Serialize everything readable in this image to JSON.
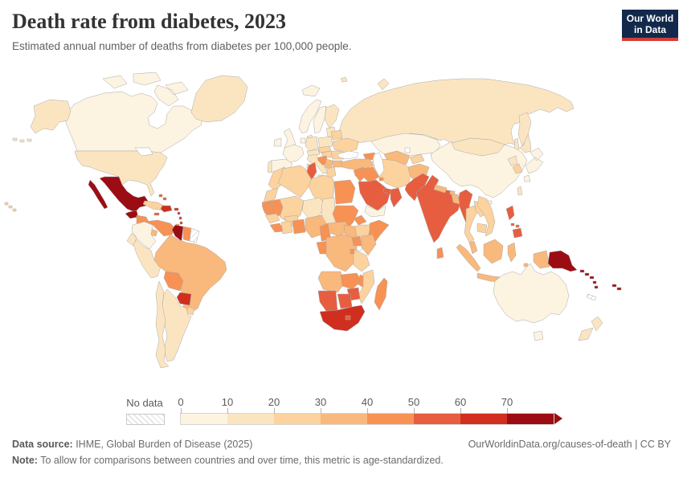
{
  "header": {
    "title": "Death rate from diabetes, 2023",
    "subtitle": "Estimated annual number of deaths from diabetes per 100,000 people."
  },
  "logo": {
    "line1": "Our World",
    "line2": "in Data",
    "bg_color": "#12294b",
    "accent_color": "#d13d39"
  },
  "legend": {
    "no_data_label": "No data",
    "tick_labels": [
      "0",
      "10",
      "20",
      "30",
      "40",
      "50",
      "60",
      "70"
    ],
    "bin_colors": [
      "#fdf3e1",
      "#fbe5c1",
      "#fcd29e",
      "#f9b87c",
      "#f79254",
      "#e75d40",
      "#d02f1f",
      "#9c0d13"
    ]
  },
  "footer": {
    "source_label": "Data source:",
    "source_text": " IHME, Global Burden of Disease (2025)",
    "rights_text": "OurWorldinData.org/causes-of-death | CC BY",
    "note_label": "Note:",
    "note_text": " To allow for comparisons between countries and over time, this metric is age-standardized."
  },
  "map": {
    "ocean_color": "#ffffff",
    "border_color": "#a9a9a9",
    "countries": [
      {
        "id": "russia",
        "bin": 1
      },
      {
        "id": "sea-okhotsk",
        "sea": true
      },
      {
        "id": "russia-far-east",
        "bin": 1
      },
      {
        "id": "kazakhstan",
        "bin": 0
      },
      {
        "id": "turkmenistan-uzbekistan",
        "bin": 3
      },
      {
        "id": "kyrgyzstan-tajikistan",
        "bin": 2
      },
      {
        "id": "caucasus",
        "bin": 4
      },
      {
        "id": "iran",
        "bin": 2
      },
      {
        "id": "sea-caspian",
        "sea": true
      },
      {
        "id": "sea-aral",
        "sea": true
      },
      {
        "id": "china",
        "bin": 0
      },
      {
        "id": "mongolia",
        "bin": 1
      },
      {
        "id": "north-korea",
        "bin": 1
      },
      {
        "id": "south-korea",
        "bin": 2
      },
      {
        "id": "japan",
        "bin": 0
      },
      {
        "id": "taiwan",
        "bin": 1
      },
      {
        "id": "norway",
        "bin": 0
      },
      {
        "id": "sweden",
        "bin": 0
      },
      {
        "id": "finland",
        "bin": 1
      },
      {
        "id": "denmark",
        "bin": 1
      },
      {
        "id": "baltic-states",
        "bin": 1
      },
      {
        "id": "belarus",
        "bin": 2
      },
      {
        "id": "poland",
        "bin": 1
      },
      {
        "id": "germany",
        "bin": 1
      },
      {
        "id": "benelux",
        "bin": 0
      },
      {
        "id": "uk",
        "bin": 0
      },
      {
        "id": "ireland",
        "bin": 0
      },
      {
        "id": "iceland",
        "bin": 0
      },
      {
        "id": "france",
        "bin": 0
      },
      {
        "id": "spain",
        "bin": 0
      },
      {
        "id": "portugal",
        "bin": 1
      },
      {
        "id": "switzerland-austria",
        "bin": 1
      },
      {
        "id": "czech-slovakia",
        "bin": 2
      },
      {
        "id": "hungary",
        "bin": 2
      },
      {
        "id": "ukraine",
        "bin": 2
      },
      {
        "id": "romania",
        "bin": 2
      },
      {
        "id": "bulgaria",
        "bin": 3
      },
      {
        "id": "croatia-bosnia",
        "bin": 4
      },
      {
        "id": "serbia-albania",
        "bin": 3
      },
      {
        "id": "greece",
        "bin": 2
      },
      {
        "id": "italy",
        "bin": 1
      },
      {
        "id": "turkey",
        "bin": 3
      },
      {
        "id": "sea-black",
        "sea": true
      },
      {
        "id": "cyprus",
        "bin": 3
      },
      {
        "id": "syria-levant",
        "bin": 4
      },
      {
        "id": "iraq",
        "bin": 4
      },
      {
        "id": "saudi-arabia",
        "bin": 5
      },
      {
        "id": "kuwait",
        "bin": 4
      },
      {
        "id": "uae-qatar",
        "bin": 5
      },
      {
        "id": "oman",
        "bin": 5
      },
      {
        "id": "yemen",
        "bin": 0
      },
      {
        "id": "afghanistan",
        "bin": 3
      },
      {
        "id": "pakistan",
        "bin": 5
      },
      {
        "id": "india",
        "bin": 5
      },
      {
        "id": "nepal",
        "bin": 3
      },
      {
        "id": "bhutan",
        "bin": 3
      },
      {
        "id": "myanmar",
        "bin": 5
      },
      {
        "id": "bangladesh",
        "bin": 3
      },
      {
        "id": "sri-lanka",
        "bin": 4
      },
      {
        "id": "thailand",
        "bin": 2
      },
      {
        "id": "laos",
        "bin": 2
      },
      {
        "id": "vietnam",
        "bin": 2
      },
      {
        "id": "cambodia",
        "bin": 2
      },
      {
        "id": "malaysia",
        "bin": 3
      },
      {
        "id": "indonesia",
        "bin": 3
      },
      {
        "id": "philippines",
        "bin": 5
      },
      {
        "id": "papua-new-guinea",
        "bin": 7
      },
      {
        "id": "solomon-islands",
        "bin": 7
      },
      {
        "id": "vanuatu",
        "bin": 7
      },
      {
        "id": "fiji",
        "bin": 7
      },
      {
        "id": "new-caledonia",
        "bin": "nd"
      },
      {
        "id": "morocco",
        "bin": 2
      },
      {
        "id": "western-sahara",
        "bin": 2
      },
      {
        "id": "algeria",
        "bin": 2
      },
      {
        "id": "tunisia",
        "bin": 5
      },
      {
        "id": "libya",
        "bin": 2
      },
      {
        "id": "egypt",
        "bin": 4
      },
      {
        "id": "mauritania",
        "bin": 4
      },
      {
        "id": "mali",
        "bin": 2
      },
      {
        "id": "burkina-faso",
        "bin": 2
      },
      {
        "id": "niger",
        "bin": 1
      },
      {
        "id": "chad",
        "bin": 1
      },
      {
        "id": "sudan",
        "bin": 4
      },
      {
        "id": "eritrea",
        "bin": 4
      },
      {
        "id": "ethiopia",
        "bin": 2
      },
      {
        "id": "somalia",
        "bin": 4
      },
      {
        "id": "senegal",
        "bin": 4
      },
      {
        "id": "guinea",
        "bin": 2
      },
      {
        "id": "sierra-leone-liberia",
        "bin": 4
      },
      {
        "id": "ivory-coast",
        "bin": 2
      },
      {
        "id": "ghana-togo-benin",
        "bin": 4
      },
      {
        "id": "nigeria",
        "bin": 3
      },
      {
        "id": "cameroon",
        "bin": 4
      },
      {
        "id": "central-african-republic",
        "bin": 3
      },
      {
        "id": "south-sudan",
        "bin": 3
      },
      {
        "id": "gabon-congo",
        "bin": 4
      },
      {
        "id": "dr-congo",
        "bin": 3
      },
      {
        "id": "uganda",
        "bin": 4
      },
      {
        "id": "kenya",
        "bin": 3
      },
      {
        "id": "sea-lake-victoria",
        "sea": true
      },
      {
        "id": "tanzania",
        "bin": 2
      },
      {
        "id": "rwanda-burundi",
        "bin": 4
      },
      {
        "id": "angola",
        "bin": 3
      },
      {
        "id": "zambia",
        "bin": 4
      },
      {
        "id": "malawi",
        "bin": 4
      },
      {
        "id": "mozambique",
        "bin": 2
      },
      {
        "id": "zimbabwe",
        "bin": 5
      },
      {
        "id": "namibia",
        "bin": 5
      },
      {
        "id": "botswana",
        "bin": 5
      },
      {
        "id": "south-africa",
        "bin": 6
      },
      {
        "id": "lesotho",
        "bin": 5
      },
      {
        "id": "madagascar",
        "bin": 4
      },
      {
        "id": "australia",
        "bin": 0
      },
      {
        "id": "new-zealand",
        "bin": 1
      },
      {
        "id": "canada",
        "bin": 0
      },
      {
        "id": "greenland",
        "bin": 1
      },
      {
        "id": "alaska",
        "bin": 1
      },
      {
        "id": "usa",
        "bin": 1
      },
      {
        "id": "sea-great-lakes",
        "sea": true
      },
      {
        "id": "hawaii",
        "bin": 2
      },
      {
        "id": "mexico",
        "bin": 7
      },
      {
        "id": "guatemala-belize",
        "bin": 7
      },
      {
        "id": "honduras-nicaragua",
        "bin": 4
      },
      {
        "id": "costa-rica-panama",
        "bin": 3
      },
      {
        "id": "cuba",
        "bin": 2
      },
      {
        "id": "jamaica",
        "bin": 5
      },
      {
        "id": "hispaniola",
        "bin": 6
      },
      {
        "id": "puerto-rico",
        "bin": 6
      },
      {
        "id": "bahamas",
        "bin": 5
      },
      {
        "id": "lesser-antilles",
        "bin": 6
      },
      {
        "id": "trinidad",
        "bin": 4
      },
      {
        "id": "colombia",
        "bin": 0
      },
      {
        "id": "venezuela",
        "bin": 4
      },
      {
        "id": "guyana",
        "bin": 7
      },
      {
        "id": "suriname",
        "bin": 4
      },
      {
        "id": "french-guiana",
        "bin": "nd"
      },
      {
        "id": "ecuador",
        "bin": 1
      },
      {
        "id": "peru",
        "bin": 1
      },
      {
        "id": "brazil",
        "bin": 3
      },
      {
        "id": "bolivia",
        "bin": 4
      },
      {
        "id": "paraguay",
        "bin": 6
      },
      {
        "id": "uruguay",
        "bin": 2
      },
      {
        "id": "argentina",
        "bin": 1
      },
      {
        "id": "chile",
        "bin": 1
      }
    ]
  },
  "chart_data": {
    "type": "heatmap",
    "subtype": "choropleth-world-map",
    "title": "Death rate from diabetes, 2023",
    "subtitle": "Estimated annual number of deaths from diabetes per 100,000 people.",
    "unit": "deaths per 100,000 people (age-standardized)",
    "legend_bins": [
      "0-10",
      "10-20",
      "20-30",
      "30-40",
      "40-50",
      "50-60",
      "60-70",
      "70+"
    ],
    "bin_colors": [
      "#fdf3e1",
      "#fbe5c1",
      "#fcd29e",
      "#f9b87c",
      "#f79254",
      "#e75d40",
      "#d02f1f",
      "#9c0d13"
    ],
    "no_data_style": "grey diagonal hatching",
    "legend_position": "bottom",
    "values": {
      "Canada": "0-10",
      "United States": "10-20",
      "Greenland": "10-20",
      "Mexico": "70+",
      "Guatemala": "70+",
      "Honduras": "40-50",
      "Nicaragua": "40-50",
      "Costa Rica": "30-40",
      "Panama": "30-40",
      "Cuba": "20-30",
      "Jamaica": "50-60",
      "Haiti": "60-70",
      "Dominican Republic": "60-70",
      "Puerto Rico": "60-70",
      "Bahamas": "50-60",
      "Trinidad and Tobago": "40-50",
      "Colombia": "0-10",
      "Venezuela": "40-50",
      "Guyana": "70+",
      "Suriname": "40-50",
      "French Guiana": "No data",
      "Ecuador": "10-20",
      "Peru": "10-20",
      "Brazil": "30-40",
      "Bolivia": "40-50",
      "Paraguay": "60-70",
      "Uruguay": "20-30",
      "Argentina": "10-20",
      "Chile": "10-20",
      "Iceland": "0-10",
      "United Kingdom": "0-10",
      "Ireland": "0-10",
      "Norway": "0-10",
      "Sweden": "0-10",
      "Finland": "10-20",
      "Denmark": "10-20",
      "Germany": "10-20",
      "France": "0-10",
      "Spain": "0-10",
      "Portugal": "10-20",
      "Italy": "10-20",
      "Poland": "10-20",
      "Ukraine": "20-30",
      "Belarus": "20-30",
      "Romania": "20-30",
      "Bulgaria": "30-40",
      "Greece": "20-30",
      "Croatia": "40-50",
      "Bosnia and Herzegovina": "40-50",
      "Serbia": "30-40",
      "Hungary": "20-30",
      "Czechia": "20-30",
      "Russia": "10-20",
      "Turkey": "30-40",
      "Kazakhstan": "0-10",
      "Uzbekistan": "30-40",
      "Turkmenistan": "30-40",
      "Azerbaijan": "40-50",
      "Iran": "20-30",
      "Iraq": "40-50",
      "Syria": "40-50",
      "Saudi Arabia": "50-60",
      "Yemen": "0-10",
      "Oman": "50-60",
      "United Arab Emirates": "50-60",
      "Kuwait": "40-50",
      "Afghanistan": "30-40",
      "Pakistan": "50-60",
      "India": "50-60",
      "Nepal": "30-40",
      "Bhutan": "30-40",
      "Bangladesh": "30-40",
      "Sri Lanka": "40-50",
      "Myanmar": "50-60",
      "Thailand": "20-30",
      "Laos": "20-30",
      "Vietnam": "20-30",
      "Cambodia": "20-30",
      "Malaysia": "30-40",
      "Indonesia": "30-40",
      "Philippines": "50-60",
      "China": "0-10",
      "Mongolia": "10-20",
      "North Korea": "10-20",
      "South Korea": "20-30",
      "Japan": "0-10",
      "Taiwan": "10-20",
      "Papua New Guinea": "70+",
      "Solomon Islands": "70+",
      "Vanuatu": "70+",
      "Fiji": "70+",
      "New Caledonia": "No data",
      "Australia": "0-10",
      "New Zealand": "10-20",
      "Morocco": "20-30",
      "Western Sahara": "20-30",
      "Algeria": "20-30",
      "Tunisia": "50-60",
      "Libya": "20-30",
      "Egypt": "40-50",
      "Mauritania": "40-50",
      "Mali": "20-30",
      "Burkina Faso": "20-30",
      "Niger": "10-20",
      "Chad": "10-20",
      "Sudan": "40-50",
      "Eritrea": "40-50",
      "Ethiopia": "20-30",
      "Somalia": "40-50",
      "Senegal": "40-50",
      "Guinea": "20-30",
      "Sierra Leone": "40-50",
      "Liberia": "40-50",
      "Cote d'Ivoire": "20-30",
      "Ghana": "40-50",
      "Nigeria": "30-40",
      "Cameroon": "40-50",
      "Central African Republic": "30-40",
      "South Sudan": "30-40",
      "Gabon": "40-50",
      "Republic of Congo": "40-50",
      "DR Congo": "30-40",
      "Uganda": "40-50",
      "Kenya": "30-40",
      "Tanzania": "20-30",
      "Rwanda": "40-50",
      "Burundi": "40-50",
      "Angola": "30-40",
      "Zambia": "40-50",
      "Malawi": "40-50",
      "Mozambique": "20-30",
      "Zimbabwe": "50-60",
      "Namibia": "50-60",
      "Botswana": "50-60",
      "South Africa": "60-70",
      "Lesotho": "50-60",
      "Madagascar": "40-50"
    }
  }
}
